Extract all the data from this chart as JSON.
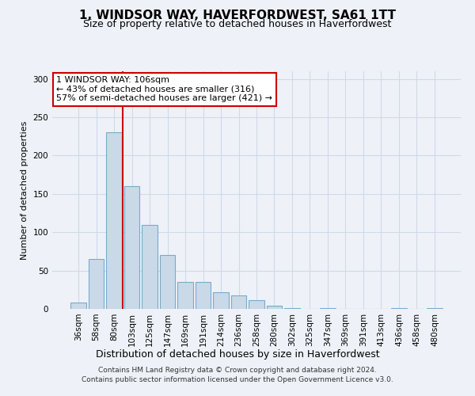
{
  "title": "1, WINDSOR WAY, HAVERFORDWEST, SA61 1TT",
  "subtitle": "Size of property relative to detached houses in Haverfordwest",
  "xlabel": "Distribution of detached houses by size in Haverfordwest",
  "ylabel": "Number of detached properties",
  "footer_line1": "Contains HM Land Registry data © Crown copyright and database right 2024.",
  "footer_line2": "Contains public sector information licensed under the Open Government Licence v3.0.",
  "bin_labels": [
    "36sqm",
    "58sqm",
    "80sqm",
    "103sqm",
    "125sqm",
    "147sqm",
    "169sqm",
    "191sqm",
    "214sqm",
    "236sqm",
    "258sqm",
    "280sqm",
    "302sqm",
    "325sqm",
    "347sqm",
    "369sqm",
    "391sqm",
    "413sqm",
    "436sqm",
    "458sqm",
    "480sqm"
  ],
  "bar_values": [
    8,
    65,
    230,
    160,
    110,
    70,
    35,
    35,
    22,
    18,
    11,
    4,
    1,
    0,
    1,
    0,
    0,
    0,
    1,
    0,
    1
  ],
  "bar_color": "#c9d9e8",
  "bar_edge_color": "#7aaac8",
  "grid_color": "#d0d8e8",
  "bg_color": "#eef2f8",
  "vline_bin_index": 3,
  "vline_color": "#cc0000",
  "annotation_line1": "1 WINDSOR WAY: 106sqm",
  "annotation_line2": "← 43% of detached houses are smaller (316)",
  "annotation_line3": "57% of semi-detached houses are larger (421) →",
  "annotation_box_color": "#ffffff",
  "annotation_box_edge_color": "#cc0000",
  "ylim": [
    0,
    310
  ],
  "yticks": [
    0,
    50,
    100,
    150,
    200,
    250,
    300
  ]
}
